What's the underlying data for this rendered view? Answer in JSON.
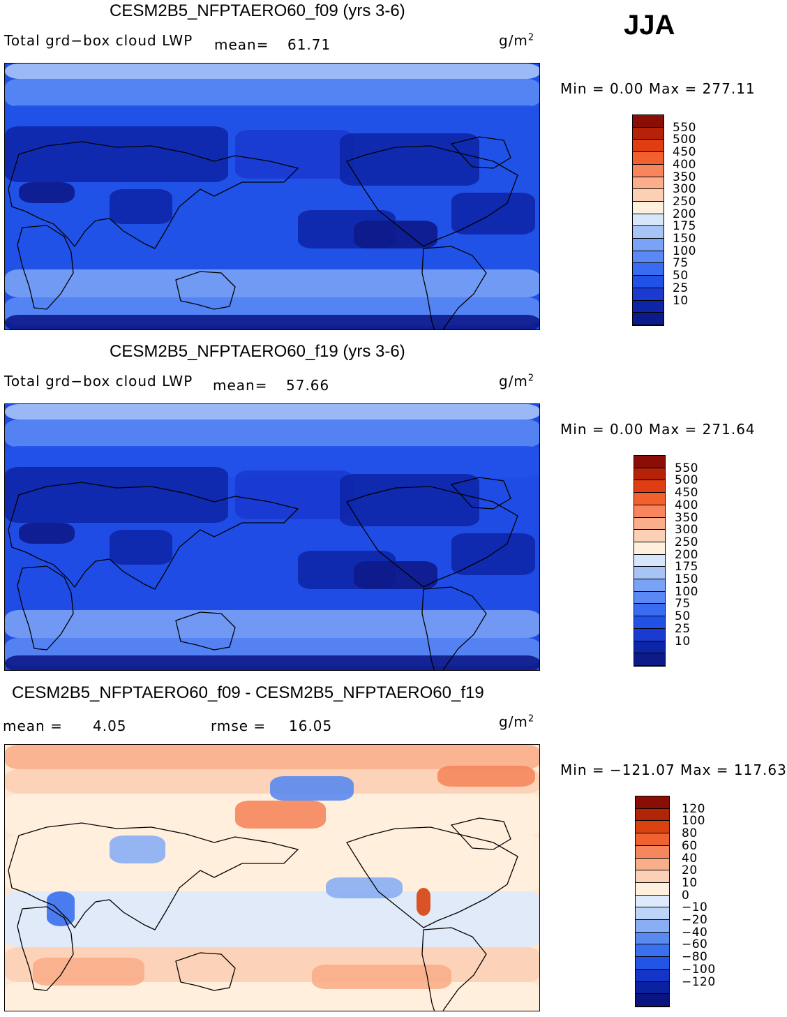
{
  "season": "JJA",
  "colors": {
    "abs": [
      "#0d1a8a",
      "#0d26a8",
      "#1a3ad0",
      "#2152e8",
      "#3a6cf2",
      "#5a88f4",
      "#7aa2f5",
      "#a7c4f7",
      "#d6e6fb",
      "#fff0dd",
      "#fcd0b5",
      "#fbae8c",
      "#f8855e",
      "#f45f2e",
      "#e03d12",
      "#b52208",
      "#8a0e06"
    ],
    "diff": [
      "#0a1480",
      "#0a22a0",
      "#1535c8",
      "#2255e6",
      "#3a70ee",
      "#5a8af0",
      "#8aaef4",
      "#bcd4f8",
      "#ddeafc",
      "#fff0dd",
      "#fcd0b5",
      "#f9ae8a",
      "#f5865d",
      "#f06330",
      "#d9420f",
      "#b22406",
      "#8a0e06"
    ]
  },
  "panels": [
    {
      "title": "CESM2B5_NFPTAERO60_f09 (yrs 3-6)",
      "var": "Total grd−box cloud LWP",
      "mean_label": "mean=",
      "mean": "61.71",
      "units": "g/m",
      "units_exp": "2",
      "minmax": "Min =    0.00 Max = 277.11",
      "levels": [
        "550",
        "500",
        "450",
        "400",
        "350",
        "300",
        "250",
        "200",
        "175",
        "150",
        "100",
        "75",
        "50",
        "25",
        "10"
      ],
      "base": "#2152e8"
    },
    {
      "title": "CESM2B5_NFPTAERO60_f19 (yrs 3-6)",
      "var": "Total grd−box cloud LWP",
      "mean_label": "mean=",
      "mean": "57.66",
      "units": "g/m",
      "units_exp": "2",
      "minmax": "Min =    0.00 Max = 271.64",
      "levels": [
        "550",
        "500",
        "450",
        "400",
        "350",
        "300",
        "250",
        "200",
        "175",
        "150",
        "100",
        "75",
        "50",
        "25",
        "10"
      ],
      "base": "#1f4ce4"
    },
    {
      "title": "CESM2B5_NFPTAERO60_f09 - CESM2B5_NFPTAERO60_f19",
      "mean_label": "mean =",
      "mean": "4.05",
      "rmse_label": "rmse =",
      "rmse": "16.05",
      "units": "g/m",
      "units_exp": "2",
      "minmax": "Min = −121.07 Max = 117.63",
      "levels": [
        "120",
        "100",
        "80",
        "60",
        "40",
        "20",
        "10",
        "0",
        "−10",
        "−20",
        "−40",
        "−60",
        "−80",
        "−100",
        "−120"
      ],
      "base": "#fde6d2"
    }
  ],
  "chart_data": [
    {
      "type": "heatmap",
      "title": "CESM2B5_NFPTAERO60_f09 (yrs 3-6)",
      "variable": "Total grd−box cloud LWP",
      "units": "g/m2",
      "mean": 61.71,
      "min": 0.0,
      "max": 277.11,
      "contour_levels": [
        10,
        25,
        50,
        75,
        100,
        150,
        175,
        200,
        250,
        300,
        350,
        400,
        450,
        500,
        550
      ]
    },
    {
      "type": "heatmap",
      "title": "CESM2B5_NFPTAERO60_f19 (yrs 3-6)",
      "variable": "Total grd−box cloud LWP",
      "units": "g/m2",
      "mean": 57.66,
      "min": 0.0,
      "max": 271.64,
      "contour_levels": [
        10,
        25,
        50,
        75,
        100,
        150,
        175,
        200,
        250,
        300,
        350,
        400,
        450,
        500,
        550
      ]
    },
    {
      "type": "heatmap",
      "title": "CESM2B5_NFPTAERO60_f09 - CESM2B5_NFPTAERO60_f19",
      "units": "g/m2",
      "mean": 4.05,
      "rmse": 16.05,
      "min": -121.07,
      "max": 117.63,
      "contour_levels": [
        -120,
        -100,
        -80,
        -60,
        -40,
        -20,
        -10,
        0,
        10,
        20,
        40,
        60,
        80,
        100,
        120
      ]
    }
  ]
}
